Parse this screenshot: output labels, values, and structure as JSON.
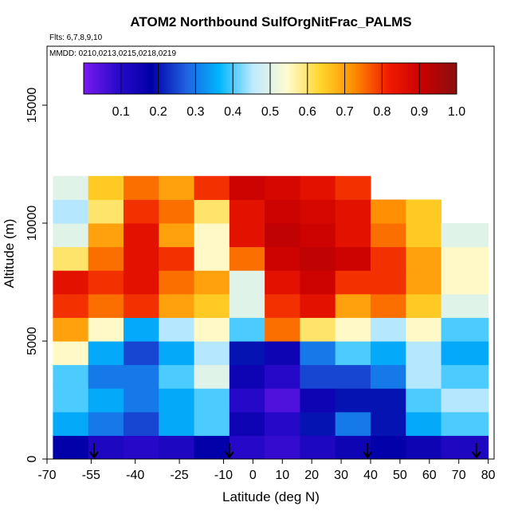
{
  "chart_data": {
    "type": "heatmap",
    "title": "ATOM2 Northbound SulfOrgNitFrac_PALMS",
    "flights_label": "Flts: 6,7,8,9,10",
    "dates_label": "MMDD: 0210,0213,0215,0218,0219",
    "xlabel": "Latitude (deg N)",
    "ylabel": "Altitude (m)",
    "xlim": [
      -70,
      82
    ],
    "ylim": [
      0,
      17500
    ],
    "x_ticks": [
      -70,
      -55,
      -40,
      -25,
      -10,
      0,
      10,
      20,
      30,
      40,
      50,
      60,
      70,
      80
    ],
    "x_tick_labels": [
      "-70",
      "-55",
      "-40",
      "-25",
      "-10",
      "0",
      "10",
      "20",
      "30",
      "40",
      "50",
      "60",
      "70",
      "80"
    ],
    "y_ticks": [
      0,
      5000,
      10000,
      15000
    ],
    "y_tick_labels": [
      "0",
      "5000",
      "10000",
      "15000"
    ],
    "colorbar": {
      "range": [
        0,
        1.0
      ],
      "ticks": [
        0.1,
        0.2,
        0.3,
        0.4,
        0.5,
        0.6,
        0.7,
        0.8,
        0.9,
        1.0
      ],
      "tick_labels": [
        "0.1",
        "0.2",
        "0.3",
        "0.4",
        "0.5",
        "0.6",
        "0.7",
        "0.8",
        "0.9",
        "1.0"
      ]
    },
    "colormap": [
      "#7a1bf0",
      "#2a0acb",
      "#0000a8",
      "#1f5fe0",
      "#00b6ff",
      "#bfeaff",
      "#fffbd0",
      "#ffd52a",
      "#ff8a00",
      "#f01a00",
      "#c80000",
      "#8a0f0f"
    ],
    "heatmap": {
      "x_edges": [
        -68,
        -56,
        -44,
        -32,
        -20,
        -8,
        4,
        16,
        28,
        40,
        52,
        64,
        80
      ],
      "y_edges": [
        0,
        1000,
        2000,
        3000,
        4000,
        5000,
        6000,
        7000,
        8000,
        9000,
        10000,
        11000,
        12000
      ],
      "values": [
        [
          0.18,
          0.12,
          0.1,
          0.12,
          0.18,
          0.1,
          0.08,
          0.12,
          0.15,
          0.18,
          0.15,
          0.12
        ],
        [
          0.35,
          0.3,
          0.25,
          0.35,
          0.4,
          0.15,
          0.1,
          0.2,
          0.3,
          0.2,
          0.35,
          0.4
        ],
        [
          0.4,
          0.35,
          0.3,
          0.35,
          0.4,
          0.1,
          0.05,
          0.15,
          0.2,
          0.2,
          0.4,
          0.45
        ],
        [
          0.4,
          0.3,
          0.3,
          0.4,
          0.5,
          0.15,
          0.1,
          0.25,
          0.25,
          0.3,
          0.45,
          0.4
        ],
        [
          0.55,
          0.35,
          0.25,
          0.35,
          0.45,
          0.2,
          0.15,
          0.3,
          0.4,
          0.35,
          0.45,
          0.35
        ],
        [
          0.7,
          0.55,
          0.35,
          0.45,
          0.55,
          0.4,
          0.75,
          0.6,
          0.55,
          0.45,
          0.55,
          0.4
        ],
        [
          0.8,
          0.75,
          0.8,
          0.7,
          0.65,
          0.5,
          0.8,
          0.85,
          0.7,
          0.75,
          0.65,
          0.5
        ],
        [
          0.85,
          0.8,
          0.85,
          0.75,
          0.7,
          0.5,
          0.85,
          0.9,
          0.8,
          0.8,
          0.7,
          0.55
        ],
        [
          0.6,
          0.75,
          0.85,
          0.8,
          0.55,
          0.75,
          0.9,
          0.92,
          0.9,
          0.8,
          0.7,
          0.55
        ],
        [
          0.5,
          0.7,
          0.85,
          0.7,
          0.55,
          0.85,
          0.92,
          0.9,
          0.85,
          0.75,
          0.65,
          0.5
        ],
        [
          0.45,
          0.6,
          0.8,
          0.75,
          0.6,
          0.85,
          0.9,
          0.88,
          0.85,
          0.72,
          0.65,
          null
        ],
        [
          0.5,
          0.65,
          0.75,
          0.7,
          0.8,
          0.9,
          0.88,
          0.85,
          0.8,
          null,
          null,
          null
        ]
      ]
    },
    "flight_markers_lat": [
      -54,
      -8,
      39,
      76
    ]
  }
}
